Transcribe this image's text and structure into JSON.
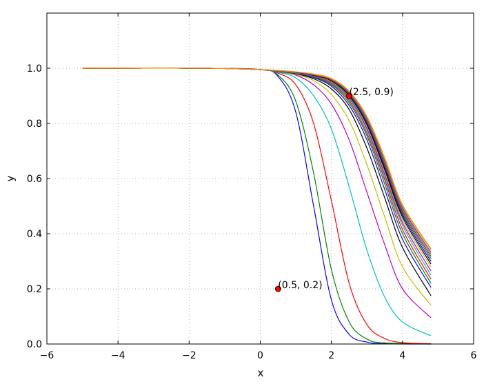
{
  "chart_data": {
    "type": "line",
    "xlabel": "x",
    "ylabel": "y",
    "xlim": [
      -6,
      6
    ],
    "ylim": [
      0,
      1.2
    ],
    "xticks": [
      -6,
      -4,
      -2,
      0,
      2,
      4,
      6
    ],
    "xtick_labels": [
      "−6",
      "−4",
      "−2",
      "0",
      "2",
      "4",
      "6"
    ],
    "yticks": [
      0,
      0.2,
      0.4,
      0.6,
      0.8,
      1.0
    ],
    "ytick_labels": [
      "0.0",
      "0.2",
      "0.4",
      "0.6",
      "0.8",
      "1.0"
    ],
    "grid": true,
    "x_range": [
      -5,
      4.8
    ],
    "series": [
      {
        "color": "#0000ff",
        "values": [
          [
            -5,
            1.0
          ],
          [
            -1.5,
            1.0
          ],
          [
            0,
            0.995
          ],
          [
            0.5,
            0.97
          ],
          [
            1.0,
            0.84
          ],
          [
            1.5,
            0.5
          ],
          [
            2.0,
            0.16
          ],
          [
            2.5,
            0.035
          ],
          [
            3.0,
            0.007
          ],
          [
            3.5,
            0.001
          ],
          [
            4.8,
            0.0
          ]
        ]
      },
      {
        "color": "#008000",
        "values": [
          [
            -5,
            1.0
          ],
          [
            -1.5,
            1.0
          ],
          [
            0,
            0.995
          ],
          [
            0.5,
            0.975
          ],
          [
            1.0,
            0.88
          ],
          [
            1.5,
            0.62
          ],
          [
            2.0,
            0.27
          ],
          [
            2.5,
            0.08
          ],
          [
            3.0,
            0.018
          ],
          [
            3.5,
            0.004
          ],
          [
            4.8,
            0.0
          ]
        ]
      },
      {
        "color": "#ff0000",
        "values": [
          [
            -5,
            1.0
          ],
          [
            -1.5,
            1.0
          ],
          [
            0,
            0.995
          ],
          [
            0.5,
            0.982
          ],
          [
            1.0,
            0.94
          ],
          [
            1.5,
            0.8
          ],
          [
            2.0,
            0.52
          ],
          [
            2.5,
            0.22
          ],
          [
            3.0,
            0.07
          ],
          [
            3.5,
            0.02
          ],
          [
            4.0,
            0.005
          ],
          [
            4.8,
            0.001
          ]
        ]
      },
      {
        "color": "#00bfbf",
        "values": [
          [
            -5,
            1.0
          ],
          [
            -1.5,
            1.0
          ],
          [
            0,
            0.995
          ],
          [
            0.5,
            0.985
          ],
          [
            1.0,
            0.965
          ],
          [
            1.5,
            0.9
          ],
          [
            2.0,
            0.78
          ],
          [
            2.5,
            0.57
          ],
          [
            3.0,
            0.34
          ],
          [
            3.5,
            0.17
          ],
          [
            4.0,
            0.08
          ],
          [
            4.8,
            0.03
          ]
        ]
      },
      {
        "color": "#bf00bf",
        "values": [
          [
            -5,
            1.0
          ],
          [
            -1.5,
            1.0
          ],
          [
            0,
            0.995
          ],
          [
            0.5,
            0.987
          ],
          [
            1.0,
            0.975
          ],
          [
            1.5,
            0.94
          ],
          [
            2.0,
            0.87
          ],
          [
            2.5,
            0.74
          ],
          [
            3.0,
            0.55
          ],
          [
            3.5,
            0.36
          ],
          [
            4.0,
            0.2
          ],
          [
            4.8,
            0.095
          ]
        ]
      },
      {
        "color": "#bfbf00",
        "values": [
          [
            -5,
            1.0
          ],
          [
            -1.5,
            1.0
          ],
          [
            0,
            0.995
          ],
          [
            0.5,
            0.988
          ],
          [
            1.0,
            0.977
          ],
          [
            1.5,
            0.955
          ],
          [
            2.0,
            0.905
          ],
          [
            2.5,
            0.81
          ],
          [
            3.0,
            0.65
          ],
          [
            3.5,
            0.46
          ],
          [
            4.0,
            0.28
          ],
          [
            4.8,
            0.14
          ]
        ]
      },
      {
        "color": "#000000",
        "values": [
          [
            -5,
            1.0
          ],
          [
            -1.5,
            1.0
          ],
          [
            0,
            0.995
          ],
          [
            0.5,
            0.989
          ],
          [
            1.0,
            0.98
          ],
          [
            1.5,
            0.962
          ],
          [
            2.0,
            0.925
          ],
          [
            2.5,
            0.85
          ],
          [
            3.0,
            0.71
          ],
          [
            3.5,
            0.53
          ],
          [
            4.0,
            0.35
          ],
          [
            4.8,
            0.175
          ]
        ]
      },
      {
        "color": "#0000ff",
        "values": [
          [
            -5,
            1.0
          ],
          [
            -1.5,
            1.0
          ],
          [
            0,
            0.995
          ],
          [
            0.5,
            0.99
          ],
          [
            1.0,
            0.981
          ],
          [
            1.5,
            0.966
          ],
          [
            2.0,
            0.935
          ],
          [
            2.5,
            0.865
          ],
          [
            3.0,
            0.74
          ],
          [
            3.5,
            0.56
          ],
          [
            4.0,
            0.38
          ],
          [
            4.8,
            0.205
          ]
        ]
      },
      {
        "color": "#008000",
        "values": [
          [
            -5,
            1.0
          ],
          [
            -1.5,
            1.0
          ],
          [
            0,
            0.995
          ],
          [
            0.5,
            0.99
          ],
          [
            1.0,
            0.982
          ],
          [
            1.5,
            0.968
          ],
          [
            2.0,
            0.94
          ],
          [
            2.5,
            0.875
          ],
          [
            3.0,
            0.755
          ],
          [
            3.5,
            0.58
          ],
          [
            4.0,
            0.4
          ],
          [
            4.8,
            0.22
          ]
        ]
      },
      {
        "color": "#ff0000",
        "values": [
          [
            -5,
            1.0
          ],
          [
            -1.5,
            1.0
          ],
          [
            0,
            0.995
          ],
          [
            0.5,
            0.99
          ],
          [
            1.0,
            0.983
          ],
          [
            1.5,
            0.97
          ],
          [
            2.0,
            0.944
          ],
          [
            2.5,
            0.882
          ],
          [
            3.0,
            0.765
          ],
          [
            3.5,
            0.595
          ],
          [
            4.0,
            0.415
          ],
          [
            4.8,
            0.235
          ]
        ]
      },
      {
        "color": "#00bfbf",
        "values": [
          [
            -5,
            1.0
          ],
          [
            -1.5,
            1.0
          ],
          [
            0,
            0.995
          ],
          [
            0.5,
            0.99
          ],
          [
            1.0,
            0.983
          ],
          [
            1.5,
            0.971
          ],
          [
            2.0,
            0.947
          ],
          [
            2.5,
            0.888
          ],
          [
            3.0,
            0.775
          ],
          [
            3.5,
            0.605
          ],
          [
            4.0,
            0.43
          ],
          [
            4.8,
            0.25
          ]
        ]
      },
      {
        "color": "#bf00bf",
        "values": [
          [
            -5,
            1.0
          ],
          [
            -1.5,
            1.0
          ],
          [
            0,
            0.995
          ],
          [
            0.5,
            0.99
          ],
          [
            1.0,
            0.984
          ],
          [
            1.5,
            0.972
          ],
          [
            2.0,
            0.95
          ],
          [
            2.5,
            0.893
          ],
          [
            3.0,
            0.782
          ],
          [
            3.5,
            0.615
          ],
          [
            4.0,
            0.44
          ],
          [
            4.8,
            0.265
          ]
        ]
      },
      {
        "color": "#bfbf00",
        "values": [
          [
            -5,
            1.0
          ],
          [
            -1.5,
            1.0
          ],
          [
            0,
            0.995
          ],
          [
            0.5,
            0.991
          ],
          [
            1.0,
            0.984
          ],
          [
            1.5,
            0.973
          ],
          [
            2.0,
            0.952
          ],
          [
            2.5,
            0.897
          ],
          [
            3.0,
            0.79
          ],
          [
            3.5,
            0.625
          ],
          [
            4.0,
            0.45
          ],
          [
            4.8,
            0.28
          ]
        ]
      },
      {
        "color": "#000000",
        "values": [
          [
            -5,
            1.0
          ],
          [
            -1.5,
            1.0
          ],
          [
            0,
            0.995
          ],
          [
            0.5,
            0.991
          ],
          [
            1.0,
            0.985
          ],
          [
            1.5,
            0.974
          ],
          [
            2.0,
            0.954
          ],
          [
            2.5,
            0.9
          ],
          [
            3.0,
            0.795
          ],
          [
            3.5,
            0.632
          ],
          [
            4.0,
            0.46
          ],
          [
            4.8,
            0.29
          ]
        ]
      },
      {
        "color": "#0000ff",
        "values": [
          [
            -5,
            1.0
          ],
          [
            -1.5,
            1.0
          ],
          [
            0,
            0.995
          ],
          [
            0.5,
            0.991
          ],
          [
            1.0,
            0.985
          ],
          [
            1.5,
            0.975
          ],
          [
            2.0,
            0.956
          ],
          [
            2.5,
            0.903
          ],
          [
            3.0,
            0.8
          ],
          [
            3.5,
            0.64
          ],
          [
            4.0,
            0.468
          ],
          [
            4.8,
            0.3
          ]
        ]
      },
      {
        "color": "#008000",
        "values": [
          [
            -5,
            1.0
          ],
          [
            -1.5,
            1.0
          ],
          [
            0,
            0.995
          ],
          [
            0.5,
            0.991
          ],
          [
            1.0,
            0.985
          ],
          [
            1.5,
            0.976
          ],
          [
            2.0,
            0.957
          ],
          [
            2.5,
            0.906
          ],
          [
            3.0,
            0.805
          ],
          [
            3.5,
            0.647
          ],
          [
            4.0,
            0.475
          ],
          [
            4.8,
            0.31
          ]
        ]
      },
      {
        "color": "#ff0000",
        "values": [
          [
            -5,
            1.0
          ],
          [
            -1.5,
            1.0
          ],
          [
            0,
            0.995
          ],
          [
            0.5,
            0.991
          ],
          [
            1.0,
            0.986
          ],
          [
            1.5,
            0.976
          ],
          [
            2.0,
            0.958
          ],
          [
            2.5,
            0.909
          ],
          [
            3.0,
            0.81
          ],
          [
            3.5,
            0.653
          ],
          [
            4.0,
            0.482
          ],
          [
            4.8,
            0.318
          ]
        ]
      },
      {
        "color": "#00bfbf",
        "values": [
          [
            -5,
            1.0
          ],
          [
            -1.5,
            1.0
          ],
          [
            0,
            0.995
          ],
          [
            0.5,
            0.991
          ],
          [
            1.0,
            0.986
          ],
          [
            1.5,
            0.977
          ],
          [
            2.0,
            0.96
          ],
          [
            2.5,
            0.911
          ],
          [
            3.0,
            0.814
          ],
          [
            3.5,
            0.659
          ],
          [
            4.0,
            0.488
          ],
          [
            4.8,
            0.325
          ]
        ]
      },
      {
        "color": "#bf00bf",
        "values": [
          [
            -5,
            1.0
          ],
          [
            -1.5,
            1.0
          ],
          [
            0,
            0.995
          ],
          [
            0.5,
            0.992
          ],
          [
            1.0,
            0.986
          ],
          [
            1.5,
            0.977
          ],
          [
            2.0,
            0.961
          ],
          [
            2.5,
            0.913
          ],
          [
            3.0,
            0.818
          ],
          [
            3.5,
            0.664
          ],
          [
            4.0,
            0.494
          ],
          [
            4.8,
            0.332
          ]
        ]
      },
      {
        "color": "#bfbf00",
        "values": [
          [
            -5,
            1.0
          ],
          [
            -1.5,
            1.0
          ],
          [
            0,
            0.995
          ],
          [
            0.5,
            0.992
          ],
          [
            1.0,
            0.987
          ],
          [
            1.5,
            0.978
          ],
          [
            2.0,
            0.962
          ],
          [
            2.5,
            0.915
          ],
          [
            3.0,
            0.822
          ],
          [
            3.5,
            0.67
          ],
          [
            4.0,
            0.5
          ],
          [
            4.8,
            0.34
          ]
        ]
      },
      {
        "color": "#ff8c00",
        "values": [
          [
            -5,
            1.0
          ],
          [
            -1.5,
            1.0
          ],
          [
            0,
            0.995
          ],
          [
            0.5,
            0.992
          ],
          [
            1.0,
            0.987
          ],
          [
            1.5,
            0.979
          ],
          [
            2.0,
            0.963
          ],
          [
            2.5,
            0.917
          ],
          [
            3.0,
            0.825
          ],
          [
            3.5,
            0.675
          ],
          [
            4.0,
            0.505
          ],
          [
            4.8,
            0.345
          ]
        ]
      }
    ],
    "annotations": [
      {
        "x": 0.5,
        "y": 0.2,
        "text": "(0.5, 0.2)",
        "marker_color": "#ff0000"
      },
      {
        "x": 2.5,
        "y": 0.9,
        "text": "(2.5, 0.9)",
        "marker_color": "#ff0000"
      }
    ]
  }
}
